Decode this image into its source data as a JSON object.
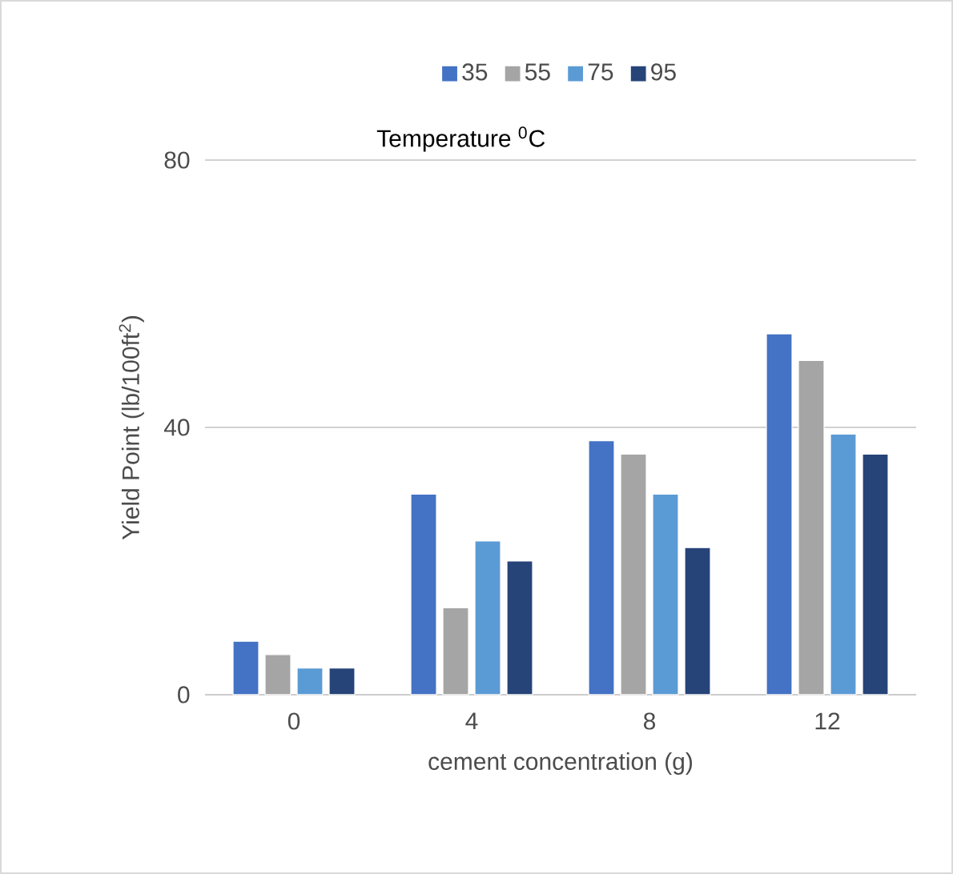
{
  "chart_data": {
    "type": "bar",
    "xlabel": "cement concentration (g)",
    "ylabel": "Yield Point (lb/100ft$^{2}$)",
    "legend_title": "Temperature $^{0}$C",
    "categories": [
      "0",
      "4",
      "8",
      "12"
    ],
    "series": [
      {
        "name": "35",
        "color": "#4472c4",
        "values": [
          8,
          30,
          38,
          54
        ]
      },
      {
        "name": "55",
        "color": "#a5a5a5",
        "values": [
          6,
          13,
          36,
          50
        ]
      },
      {
        "name": "75",
        "color": "#5b9bd5",
        "values": [
          4,
          23,
          30,
          39
        ]
      },
      {
        "name": "95",
        "color": "#264478",
        "values": [
          4,
          20,
          22,
          36
        ]
      }
    ],
    "ylim": [
      0,
      80
    ],
    "yticks": [
      0,
      40,
      80
    ],
    "grid": "y",
    "legend": "top"
  }
}
